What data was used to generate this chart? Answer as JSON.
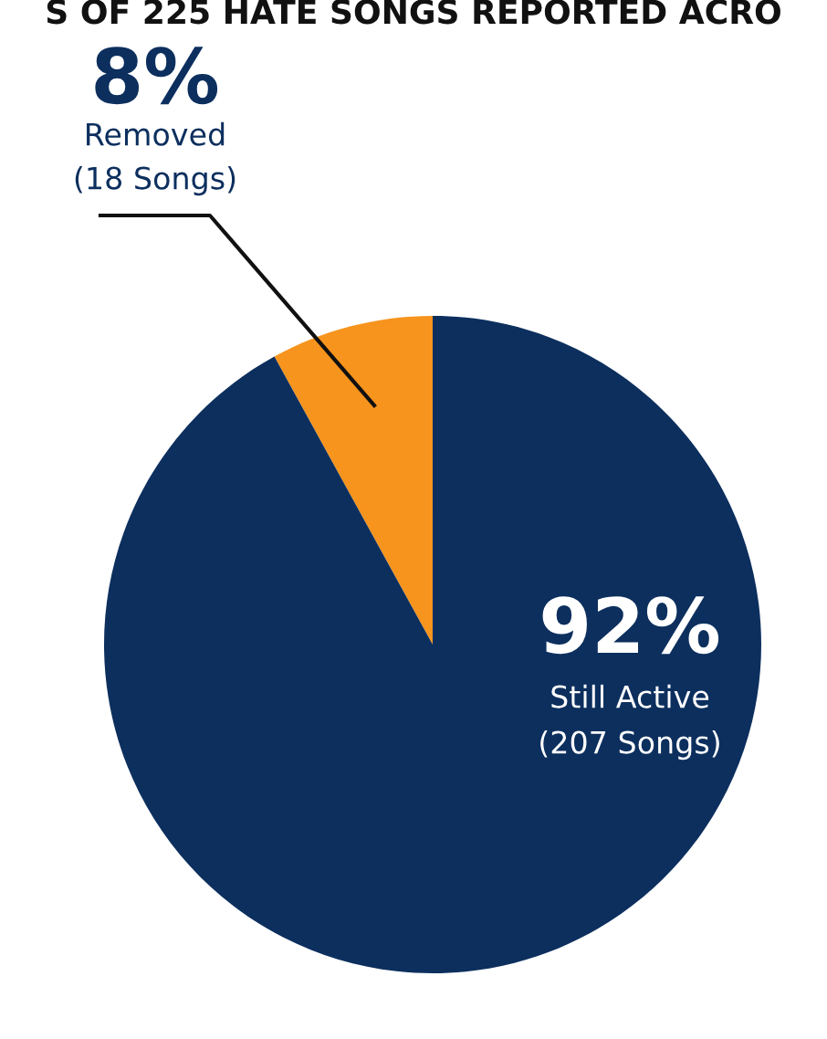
{
  "chart_data": {
    "type": "pie",
    "title": "S OF 225 HATE SONGS REPORTED ACRO",
    "categories": [
      "Removed",
      "Still Active"
    ],
    "values": [
      8,
      92
    ],
    "colors": [
      "#f7941d",
      "#0c2f5e"
    ],
    "value_labels": [
      "8%",
      "92%"
    ],
    "annotations": [
      "(18 Songs)",
      "(207 Songs)"
    ]
  }
}
